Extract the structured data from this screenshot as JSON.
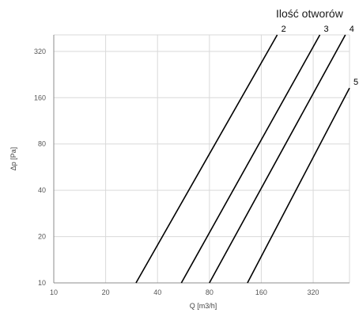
{
  "chart_data": {
    "type": "line",
    "title": "Ilość otworów",
    "xlabel": "Q [m3/h]",
    "ylabel": "Δp  [Pa]",
    "x_scale": "log2",
    "y_scale": "log2",
    "xlim": [
      10,
      520
    ],
    "ylim": [
      10,
      410
    ],
    "x_ticks": [
      10,
      20,
      40,
      80,
      160,
      320
    ],
    "y_ticks": [
      10,
      20,
      40,
      80,
      160,
      320
    ],
    "grid": true,
    "series": [
      {
        "name": "2",
        "points": [
          [
            30,
            10
          ],
          [
            198,
            410
          ]
        ]
      },
      {
        "name": "3",
        "points": [
          [
            55,
            10
          ],
          [
            350,
            410
          ]
        ]
      },
      {
        "name": "4",
        "points": [
          [
            80,
            10
          ],
          [
            492,
            410
          ]
        ]
      },
      {
        "name": "5",
        "points": [
          [
            133,
            10
          ],
          [
            520,
            185
          ]
        ]
      }
    ]
  }
}
